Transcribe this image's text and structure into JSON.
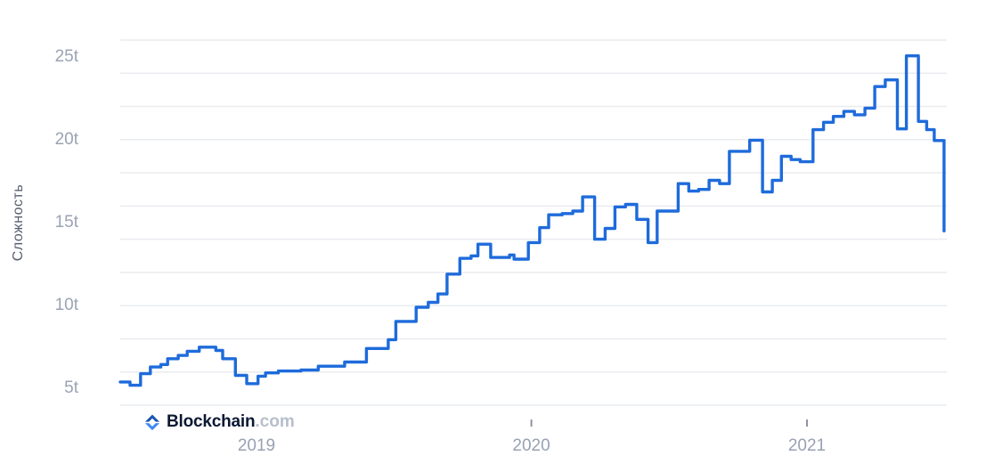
{
  "branding": {
    "logo_icon": "blockchain-diamond-icon",
    "logo_text": "Blockchain",
    "logo_suffix": ".com"
  },
  "chart_data": {
    "type": "line",
    "line_style": "step-after",
    "title": "",
    "xlabel": "",
    "ylabel": "Сложность",
    "grid": true,
    "legend": "none",
    "unit_suffix": "t",
    "ylim": [
      4,
      26
    ],
    "x_range": [
      "2018-07-03",
      "2021-07-03"
    ],
    "y_axis": {
      "gridline_values": [
        4,
        6,
        8,
        10,
        12,
        14,
        16,
        18,
        20,
        22,
        24,
        26
      ],
      "labels": [
        {
          "value": 5,
          "text": "5t"
        },
        {
          "value": 10,
          "text": "10t"
        },
        {
          "value": 15,
          "text": "15t"
        },
        {
          "value": 20,
          "text": "20t"
        },
        {
          "value": 25,
          "text": "25t"
        }
      ]
    },
    "x_axis": {
      "ticks": [
        {
          "label": "2019",
          "date": "2019-01-01",
          "tick_mark_visible": false
        },
        {
          "label": "2020",
          "date": "2020-01-01",
          "tick_mark_visible": true
        },
        {
          "label": "2021",
          "date": "2021-01-01",
          "tick_mark_visible": true
        }
      ]
    },
    "series": [
      {
        "name": "Сложность",
        "color": "#1e6bdb",
        "points": [
          [
            "2018-07-04",
            5.4
          ],
          [
            "2018-07-17",
            5.2
          ],
          [
            "2018-07-31",
            5.9
          ],
          [
            "2018-08-13",
            6.3
          ],
          [
            "2018-08-27",
            6.45
          ],
          [
            "2018-09-05",
            6.8
          ],
          [
            "2018-09-19",
            7.0
          ],
          [
            "2018-10-01",
            7.25
          ],
          [
            "2018-10-17",
            7.5
          ],
          [
            "2018-11-08",
            7.3
          ],
          [
            "2018-11-17",
            6.8
          ],
          [
            "2018-12-04",
            5.8
          ],
          [
            "2018-12-19",
            5.3
          ],
          [
            "2019-01-03",
            5.75
          ],
          [
            "2019-01-13",
            5.95
          ],
          [
            "2019-01-30",
            6.06
          ],
          [
            "2019-03-01",
            6.12
          ],
          [
            "2019-03-24",
            6.35
          ],
          [
            "2019-04-28",
            6.6
          ],
          [
            "2019-05-27",
            7.42
          ],
          [
            "2019-06-25",
            7.95
          ],
          [
            "2019-07-05",
            9.05
          ],
          [
            "2019-08-01",
            9.9
          ],
          [
            "2019-08-17",
            10.2
          ],
          [
            "2019-08-30",
            10.7
          ],
          [
            "2019-09-11",
            11.9
          ],
          [
            "2019-09-28",
            12.85
          ],
          [
            "2019-10-13",
            13.0
          ],
          [
            "2019-10-22",
            13.7
          ],
          [
            "2019-11-08",
            12.9
          ],
          [
            "2019-12-03",
            13.05
          ],
          [
            "2019-12-09",
            12.8
          ],
          [
            "2019-12-28",
            13.8
          ],
          [
            "2020-01-12",
            14.7
          ],
          [
            "2020-01-24",
            15.47
          ],
          [
            "2020-02-11",
            15.55
          ],
          [
            "2020-02-25",
            15.7
          ],
          [
            "2020-03-09",
            16.55
          ],
          [
            "2020-03-25",
            14.0
          ],
          [
            "2020-04-08",
            14.65
          ],
          [
            "2020-04-21",
            15.95
          ],
          [
            "2020-05-05",
            16.1
          ],
          [
            "2020-05-20",
            15.2
          ],
          [
            "2020-06-04",
            13.8
          ],
          [
            "2020-06-16",
            15.7
          ],
          [
            "2020-07-14",
            17.35
          ],
          [
            "2020-07-28",
            16.9
          ],
          [
            "2020-08-10",
            17.0
          ],
          [
            "2020-08-24",
            17.55
          ],
          [
            "2020-09-07",
            17.35
          ],
          [
            "2020-09-20",
            19.3
          ],
          [
            "2020-10-17",
            19.97
          ],
          [
            "2020-11-03",
            16.85
          ],
          [
            "2020-11-16",
            17.55
          ],
          [
            "2020-11-28",
            19.0
          ],
          [
            "2020-12-11",
            18.8
          ],
          [
            "2020-12-23",
            18.67
          ],
          [
            "2021-01-09",
            20.6
          ],
          [
            "2021-01-23",
            21.05
          ],
          [
            "2021-02-05",
            21.4
          ],
          [
            "2021-02-19",
            21.7
          ],
          [
            "2021-03-05",
            21.5
          ],
          [
            "2021-03-19",
            21.9
          ],
          [
            "2021-04-01",
            23.2
          ],
          [
            "2021-04-15",
            23.6
          ],
          [
            "2021-05-01",
            20.65
          ],
          [
            "2021-05-13",
            25.05
          ],
          [
            "2021-05-29",
            21.1
          ],
          [
            "2021-06-09",
            20.6
          ],
          [
            "2021-06-19",
            19.95
          ],
          [
            "2021-07-02",
            14.5
          ]
        ]
      }
    ],
    "colors": {
      "line": "#1e6bdb",
      "gridline": "#e9ebef",
      "tick_mark": "#8e95a3",
      "y_label": "#9aa3b4",
      "x_label": "#98a1b4",
      "axis_title": "#555d6d"
    }
  }
}
